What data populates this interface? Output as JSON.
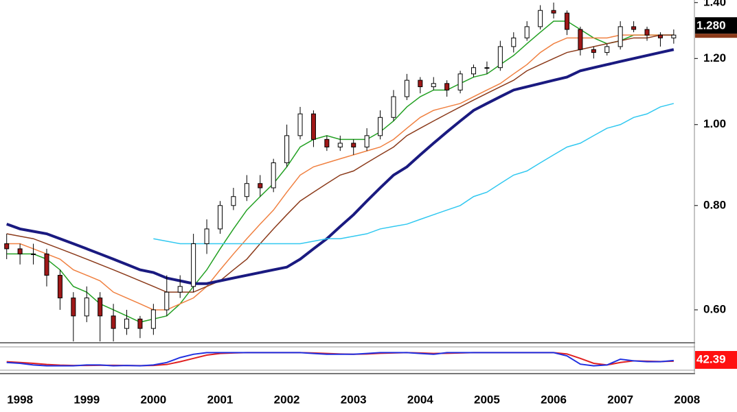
{
  "chart_data": [
    {
      "type": "candlestick",
      "x": [
        1997.8,
        1998,
        1998.2,
        1998.4,
        1998.6,
        1998.8,
        1999,
        1999.2,
        1999.4,
        1999.6,
        1999.8,
        2000,
        2000.2,
        2000.4,
        2000.6,
        2000.8,
        2001,
        2001.2,
        2001.4,
        2001.6,
        2001.8,
        2002,
        2002.2,
        2002.4,
        2002.6,
        2002.8,
        2003,
        2003.2,
        2003.4,
        2003.6,
        2003.8,
        2004,
        2004.2,
        2004.4,
        2004.6,
        2004.8,
        2005,
        2005.2,
        2005.4,
        2005.6,
        2005.8,
        2006,
        2006.2,
        2006.4,
        2006.6,
        2006.8,
        2007,
        2007.2,
        2007.4,
        2007.6,
        2007.8
      ],
      "open": [
        0.72,
        0.71,
        0.7,
        0.7,
        0.66,
        0.62,
        0.59,
        0.62,
        0.59,
        0.57,
        0.585,
        0.57,
        0.6,
        0.63,
        0.64,
        0.72,
        0.75,
        0.8,
        0.82,
        0.85,
        0.84,
        0.9,
        0.97,
        1.03,
        0.96,
        0.94,
        0.95,
        0.94,
        0.97,
        1.02,
        1.08,
        1.13,
        1.11,
        1.12,
        1.1,
        1.15,
        1.17,
        1.17,
        1.24,
        1.27,
        1.31,
        1.37,
        1.36,
        1.3,
        1.23,
        1.22,
        1.24,
        1.31,
        1.3,
        1.28,
        1.27
      ],
      "high": [
        0.74,
        0.72,
        0.72,
        0.71,
        0.67,
        0.63,
        0.64,
        0.63,
        0.61,
        0.6,
        0.59,
        0.61,
        0.66,
        0.66,
        0.74,
        0.77,
        0.81,
        0.84,
        0.87,
        0.87,
        0.91,
        1.0,
        1.05,
        1.04,
        0.97,
        0.97,
        0.96,
        0.99,
        1.04,
        1.1,
        1.15,
        1.14,
        1.14,
        1.13,
        1.16,
        1.18,
        1.19,
        1.26,
        1.29,
        1.33,
        1.39,
        1.4,
        1.37,
        1.31,
        1.24,
        1.25,
        1.33,
        1.33,
        1.31,
        1.29,
        1.3
      ],
      "low": [
        0.69,
        0.68,
        0.68,
        0.64,
        0.6,
        0.55,
        0.58,
        0.55,
        0.55,
        0.56,
        0.555,
        0.56,
        0.59,
        0.62,
        0.63,
        0.7,
        0.74,
        0.79,
        0.81,
        0.82,
        0.83,
        0.89,
        0.96,
        0.94,
        0.93,
        0.93,
        0.92,
        0.93,
        0.96,
        1.01,
        1.07,
        1.09,
        1.1,
        1.08,
        1.09,
        1.14,
        1.15,
        1.16,
        1.22,
        1.26,
        1.3,
        1.34,
        1.28,
        1.21,
        1.2,
        1.21,
        1.23,
        1.29,
        1.26,
        1.24,
        1.25
      ],
      "close": [
        0.71,
        0.7,
        0.7,
        0.66,
        0.62,
        0.59,
        0.62,
        0.59,
        0.57,
        0.585,
        0.57,
        0.6,
        0.63,
        0.64,
        0.72,
        0.75,
        0.8,
        0.82,
        0.85,
        0.84,
        0.9,
        0.97,
        1.03,
        0.96,
        0.94,
        0.95,
        0.94,
        0.97,
        1.02,
        1.08,
        1.13,
        1.11,
        1.12,
        1.1,
        1.15,
        1.17,
        1.17,
        1.24,
        1.27,
        1.31,
        1.37,
        1.36,
        1.3,
        1.23,
        1.22,
        1.24,
        1.31,
        1.3,
        1.28,
        1.27,
        1.28
      ],
      "close_label": "1.280",
      "up_color": "#ffffff",
      "down_color": "#a01818",
      "xlim": [
        1997.7,
        2008.1
      ],
      "xticks": [
        1998,
        1999,
        2000,
        2001,
        2002,
        2003,
        2004,
        2005,
        2006,
        2007,
        2008
      ],
      "log_scale": true,
      "ylim": [
        0.55,
        1.41
      ],
      "yticks": [
        {
          "value": 0.6,
          "label": "0.60"
        },
        {
          "value": 0.8,
          "label": "0.80"
        },
        {
          "value": 1.0,
          "label": "1.00"
        },
        {
          "value": 1.2,
          "label": "1.20"
        },
        {
          "value": 1.4,
          "label": "1.40"
        }
      ],
      "series": [
        {
          "color": "#22a022",
          "values": [
            0.7,
            0.7,
            0.7,
            0.69,
            0.67,
            0.64,
            0.63,
            0.61,
            0.6,
            0.59,
            0.58,
            0.585,
            0.59,
            0.61,
            0.64,
            0.67,
            0.71,
            0.75,
            0.79,
            0.82,
            0.85,
            0.89,
            0.94,
            0.96,
            0.97,
            0.96,
            0.96,
            0.96,
            0.98,
            1.01,
            1.05,
            1.08,
            1.1,
            1.1,
            1.12,
            1.14,
            1.15,
            1.18,
            1.21,
            1.25,
            1.29,
            1.33,
            1.33,
            1.3,
            1.27,
            1.25,
            1.26,
            1.28,
            1.28,
            1.28,
            1.28
          ]
        },
        {
          "color": "#f08040",
          "values": [
            0.72,
            0.72,
            0.71,
            0.7,
            0.69,
            0.67,
            0.66,
            0.65,
            0.63,
            0.62,
            0.61,
            0.6,
            0.6,
            0.61,
            0.62,
            0.64,
            0.67,
            0.7,
            0.73,
            0.76,
            0.79,
            0.83,
            0.87,
            0.89,
            0.9,
            0.91,
            0.92,
            0.93,
            0.94,
            0.96,
            0.99,
            1.02,
            1.04,
            1.05,
            1.06,
            1.08,
            1.1,
            1.12,
            1.15,
            1.18,
            1.22,
            1.25,
            1.27,
            1.27,
            1.27,
            1.27,
            1.28,
            1.28,
            1.28,
            1.28,
            1.28
          ]
        },
        {
          "color": "#8b3a1a",
          "values": [
            0.74,
            0.735,
            0.73,
            0.72,
            0.71,
            0.7,
            0.69,
            0.68,
            0.67,
            0.66,
            0.65,
            0.64,
            0.63,
            0.63,
            0.63,
            0.64,
            0.65,
            0.67,
            0.69,
            0.72,
            0.75,
            0.78,
            0.81,
            0.83,
            0.85,
            0.87,
            0.88,
            0.9,
            0.92,
            0.94,
            0.97,
            0.99,
            1.01,
            1.03,
            1.05,
            1.07,
            1.09,
            1.11,
            1.13,
            1.16,
            1.18,
            1.2,
            1.22,
            1.23,
            1.24,
            1.25,
            1.26,
            1.27,
            1.27,
            1.28,
            1.28
          ]
        },
        {
          "color": "#1a1a80",
          "width": 4,
          "values": [
            0.76,
            0.75,
            0.745,
            0.74,
            0.73,
            0.72,
            0.71,
            0.7,
            0.69,
            0.68,
            0.67,
            0.665,
            0.655,
            0.65,
            0.645,
            0.645,
            0.65,
            0.655,
            0.66,
            0.665,
            0.67,
            0.675,
            0.69,
            0.71,
            0.73,
            0.755,
            0.78,
            0.81,
            0.84,
            0.87,
            0.89,
            0.92,
            0.95,
            0.98,
            1.01,
            1.04,
            1.06,
            1.08,
            1.1,
            1.11,
            1.12,
            1.13,
            1.14,
            1.16,
            1.17,
            1.18,
            1.19,
            1.2,
            1.21,
            1.22,
            1.23
          ]
        },
        {
          "color": "#30c8f0",
          "values": [
            null,
            null,
            null,
            null,
            null,
            null,
            null,
            null,
            null,
            null,
            null,
            0.73,
            0.725,
            0.72,
            0.72,
            0.72,
            0.72,
            0.72,
            0.72,
            0.72,
            0.72,
            0.72,
            0.72,
            0.725,
            0.73,
            0.73,
            0.735,
            0.74,
            0.75,
            0.755,
            0.76,
            0.77,
            0.78,
            0.79,
            0.8,
            0.82,
            0.83,
            0.85,
            0.87,
            0.88,
            0.9,
            0.92,
            0.94,
            0.95,
            0.97,
            0.99,
            1.0,
            1.02,
            1.03,
            1.05,
            1.06
          ]
        }
      ]
    },
    {
      "type": "line",
      "x": [
        1997.8,
        1998,
        1998.2,
        1998.4,
        1998.6,
        1998.8,
        1999,
        1999.2,
        1999.4,
        1999.6,
        1999.8,
        2000,
        2000.2,
        2000.4,
        2000.6,
        2000.8,
        2001,
        2001.2,
        2001.4,
        2001.6,
        2001.8,
        2002,
        2002.2,
        2002.4,
        2002.6,
        2002.8,
        2003,
        2003.2,
        2003.4,
        2003.6,
        2003.8,
        2004,
        2004.2,
        2004.4,
        2004.6,
        2004.8,
        2005,
        2005.2,
        2005.4,
        2005.6,
        2005.8,
        2006,
        2006.2,
        2006.4,
        2006.6,
        2006.8,
        2007,
        2007.2,
        2007.4,
        2007.6,
        2007.8
      ],
      "xlim": [
        1997.7,
        2008.1
      ],
      "ylim": [
        0,
        100
      ],
      "series": [
        {
          "color": "#e02020",
          "values": [
            35,
            30,
            25,
            18,
            14,
            12,
            12,
            13,
            13,
            12,
            11,
            12,
            18,
            35,
            55,
            75,
            85,
            88,
            90,
            90,
            90,
            90,
            90,
            88,
            85,
            82,
            80,
            82,
            86,
            88,
            90,
            88,
            85,
            86,
            88,
            90,
            90,
            90,
            90,
            90,
            90,
            90,
            82,
            55,
            25,
            15,
            30,
            40,
            38,
            36,
            38
          ]
        },
        {
          "color": "#2030e0",
          "values": [
            30,
            25,
            15,
            10,
            10,
            10,
            15,
            15,
            10,
            12,
            10,
            15,
            30,
            60,
            80,
            90,
            90,
            90,
            90,
            90,
            90,
            90,
            90,
            85,
            80,
            80,
            80,
            85,
            90,
            90,
            90,
            85,
            80,
            90,
            90,
            90,
            90,
            90,
            90,
            90,
            90,
            90,
            70,
            20,
            10,
            15,
            50,
            40,
            35,
            35,
            42.39
          ]
        }
      ]
    }
  ]
}
